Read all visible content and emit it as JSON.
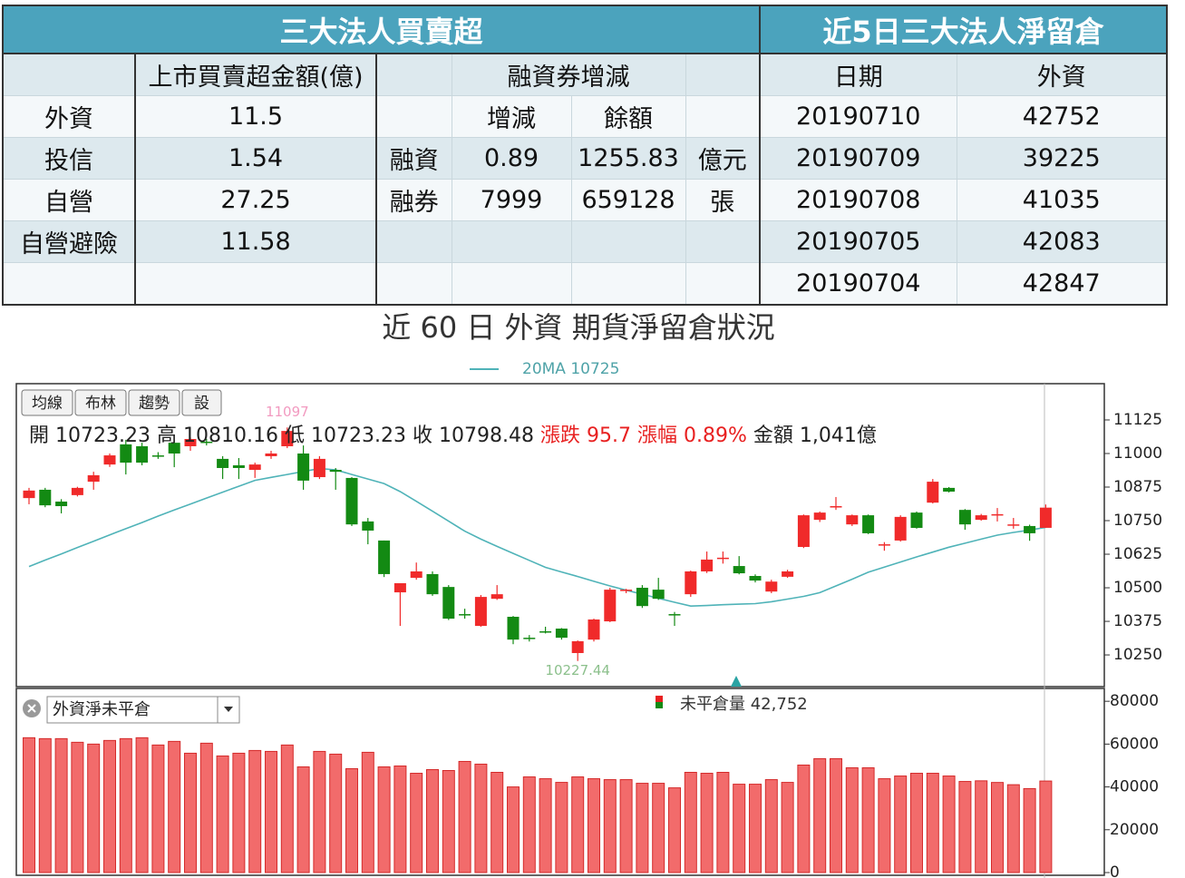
{
  "institutional": {
    "title": "三大法人買賣超",
    "amount_header": "上市買賣超金額(億)",
    "rows": [
      {
        "name": "外資",
        "amount": "11.5"
      },
      {
        "name": "投信",
        "amount": "1.54"
      },
      {
        "name": "自營",
        "amount": "27.25"
      },
      {
        "name": "自營避險",
        "amount": "11.58"
      }
    ]
  },
  "margin": {
    "header": "融資券增減",
    "sub_headers": [
      "增減",
      "餘額"
    ],
    "rows": [
      {
        "name": "融資",
        "change": "0.89",
        "balance": "1255.83",
        "unit": "億元"
      },
      {
        "name": "融券",
        "change": "7999",
        "balance": "659128",
        "unit": "張"
      }
    ]
  },
  "net_oi": {
    "title": "近5日三大法人淨留倉",
    "headers": [
      "日期",
      "外資"
    ],
    "rows": [
      [
        "20190710",
        "42752"
      ],
      [
        "20190709",
        "39225"
      ],
      [
        "20190708",
        "41035"
      ],
      [
        "20190705",
        "42083"
      ],
      [
        "20190704",
        "42847"
      ]
    ]
  },
  "section_title": "近 60 日 外資 期貨淨留倉狀況",
  "toolbar": [
    "均線",
    "布林",
    "趨勢",
    "設"
  ],
  "quote": {
    "labels": [
      "開",
      "高",
      "低",
      "收",
      "漲跌",
      "漲幅",
      "金額"
    ],
    "change": "95.7",
    "change_pct": "0.89%",
    "amount": "1,041億"
  },
  "chart_data": [
    {
      "type": "candlestick",
      "up_color": "#f02a2a",
      "down_color": "#138a13",
      "open": [
        10834,
        10865,
        10821,
        10845,
        10895,
        10959,
        11034,
        11027,
        10993,
        11040,
        11027,
        11044,
        10980,
        10956,
        10939,
        10990,
        11027,
        11000,
        10912,
        10939,
        10909,
        10747,
        10676,
        10483,
        10537,
        10551,
        10503,
        10402,
        10358,
        10459,
        10392,
        10314,
        10338,
        10348,
        10257,
        10307,
        10375,
        10490,
        10500,
        10493,
        10402,
        10476,
        10561,
        10608,
        10581,
        10544,
        10486,
        10541,
        10652,
        10753,
        10800,
        10736,
        10770,
        10662,
        10676,
        10780,
        10817,
        10872,
        10790,
        10753,
        10774,
        10736,
        10730,
        10723.23
      ],
      "high": [
        10872,
        10872,
        10830,
        10876,
        10932,
        11000,
        11051,
        11040,
        11005,
        11050,
        11060,
        11054,
        10990,
        10983,
        10966,
        11010,
        11097,
        11030,
        10990,
        10946,
        10912,
        10760,
        10676,
        10517,
        10594,
        10561,
        10510,
        10422,
        10473,
        10510,
        10395,
        10324,
        10355,
        10350,
        10304,
        10385,
        10500,
        10496,
        10510,
        10537,
        10410,
        10564,
        10635,
        10635,
        10618,
        10550,
        10530,
        10567,
        10773,
        10784,
        10838,
        10773,
        10773,
        10670,
        10770,
        10784,
        10905,
        10875,
        10793,
        10775,
        10797,
        10760,
        10735,
        10810.16
      ],
      "low": [
        10811,
        10800,
        10777,
        10840,
        10865,
        10950,
        10922,
        10956,
        10980,
        10949,
        11010,
        11030,
        10905,
        10905,
        10909,
        10980,
        11020,
        10865,
        10905,
        10865,
        10730,
        10662,
        10540,
        10358,
        10530,
        10470,
        10380,
        10385,
        10355,
        10455,
        10290,
        10300,
        10330,
        10307,
        10227.44,
        10300,
        10372,
        10480,
        10425,
        10455,
        10358,
        10466,
        10555,
        10590,
        10550,
        10520,
        10480,
        10537,
        10648,
        10745,
        10790,
        10730,
        10700,
        10638,
        10672,
        10720,
        10814,
        10855,
        10716,
        10750,
        10747,
        10720,
        10675,
        10723.23
      ],
      "close": [
        10862,
        10807,
        10804,
        10872,
        10919,
        10993,
        10966,
        10966,
        10990,
        11000,
        11054,
        11040,
        10946,
        10946,
        10959,
        11000,
        11084,
        10899,
        10980,
        10932,
        10736,
        10713,
        10551,
        10517,
        10561,
        10476,
        10385,
        10398,
        10466,
        10476,
        10307,
        10311,
        10334,
        10314,
        10301,
        10382,
        10493,
        10493,
        10432,
        10459,
        10398,
        10561,
        10605,
        10612,
        10554,
        10527,
        10523,
        10561,
        10770,
        10780,
        10804,
        10770,
        10703,
        10662,
        10764,
        10723,
        10895,
        10858,
        10736,
        10770,
        10774,
        10736,
        10703,
        10798.48
      ],
      "ma": {
        "name": "20MA",
        "color": "#4fb3b8",
        "values": [
          10579,
          10603,
          10626,
          10650,
          10673,
          10697,
          10720,
          10743,
          10767,
          10790,
          10812,
          10834,
          10856,
          10878,
          10900,
          10911,
          10922,
          10933,
          10944,
          10939,
          10922,
          10905,
          10888,
          10858,
          10822,
          10785,
          10748,
          10711,
          10681,
          10654,
          10628,
          10602,
          10576,
          10559,
          10542,
          10524,
          10507,
          10491,
          10476,
          10461,
          10446,
          10432,
          10434,
          10437,
          10439,
          10441,
          10448,
          10458,
          10468,
          10482,
          10507,
          10532,
          10558,
          10577,
          10596,
          10615,
          10633,
          10651,
          10666,
          10681,
          10696,
          10706,
          10715,
          10725
        ]
      },
      "ylim": [
        10132,
        11260
      ],
      "yticks": [
        10250,
        10375,
        10500,
        10625,
        10750,
        10875,
        11000,
        11125
      ]
    },
    {
      "type": "bar",
      "selector": "外資淨未平倉",
      "series": [
        {
          "name": "未平倉量",
          "color": "#f26b6b",
          "values": [
            62970,
            62550,
            62550,
            60850,
            60000,
            61700,
            62550,
            62970,
            59570,
            61270,
            55740,
            60420,
            54460,
            55740,
            57020,
            56590,
            59570,
            49360,
            56590,
            55310,
            48510,
            56170,
            49360,
            49780,
            46380,
            48080,
            47660,
            51910,
            50640,
            46810,
            40000,
            44680,
            43830,
            42120,
            44680,
            43830,
            43400,
            43400,
            41700,
            41700,
            39570,
            46810,
            46380,
            46810,
            41270,
            41270,
            43400,
            42120,
            50210,
            53190,
            53190,
            48930,
            48930,
            43830,
            45100,
            46380,
            46380,
            45100,
            42550,
            42847,
            42083,
            41035,
            39225,
            42752
          ]
        }
      ],
      "legend_label": "42,752",
      "ylim": [
        0,
        86000
      ],
      "yticks": [
        0,
        20000,
        40000,
        60000,
        80000
      ]
    }
  ]
}
